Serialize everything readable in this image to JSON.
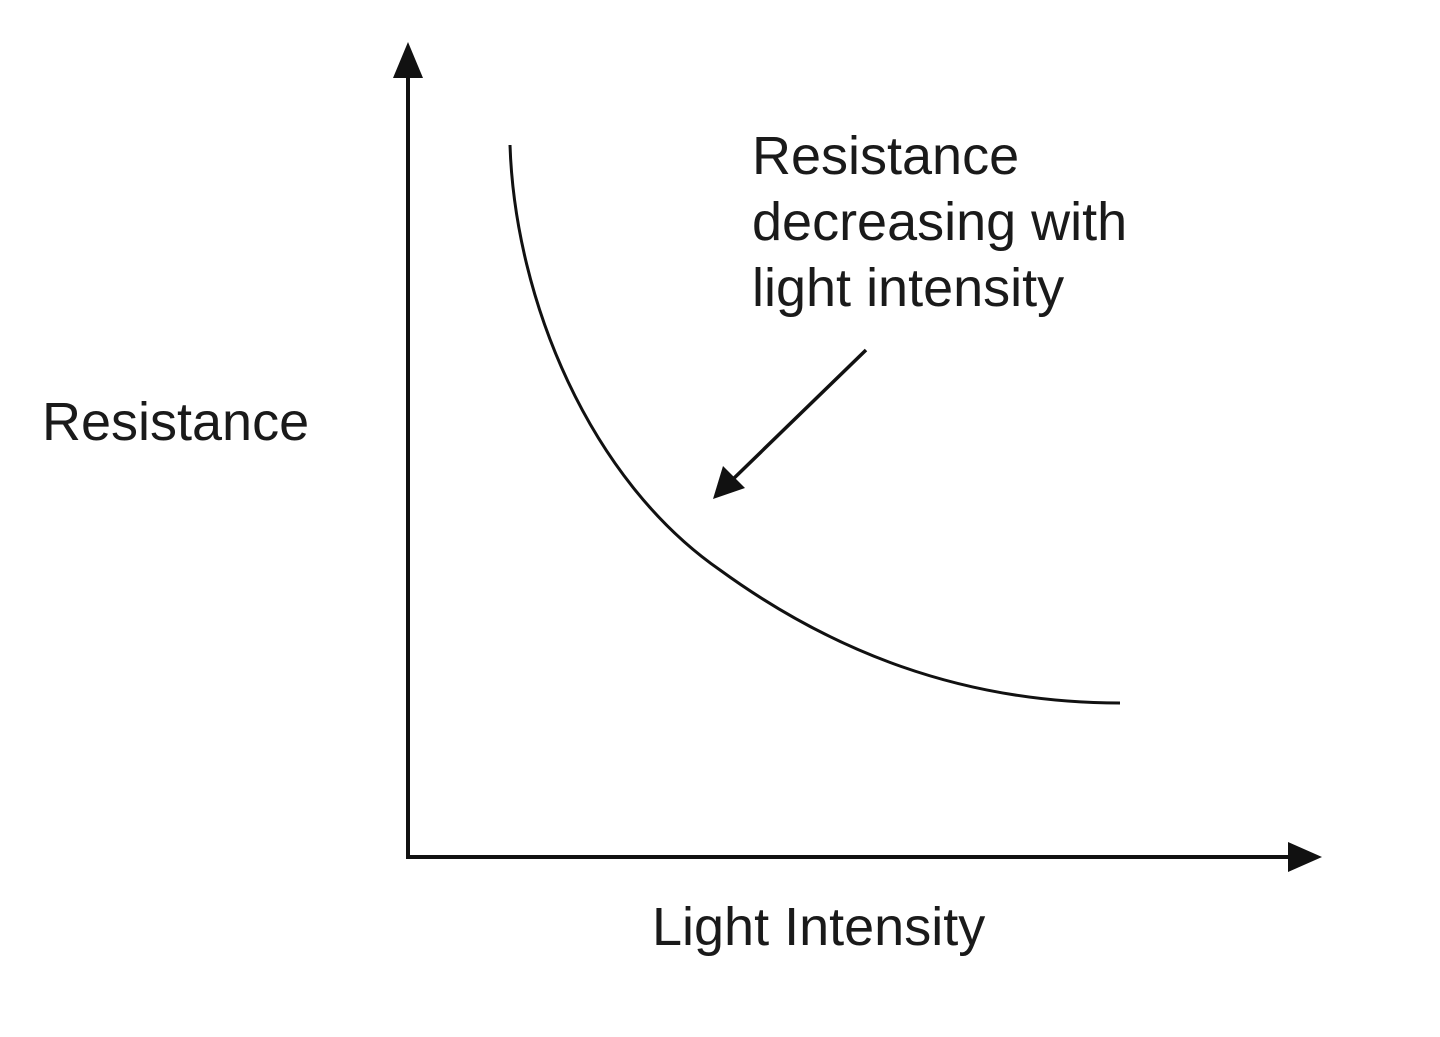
{
  "y_axis_label": "Resistance",
  "x_axis_label": "Light Intensity",
  "annotation": [
    "Resistance",
    "decreasing with",
    "light intensity"
  ]
}
